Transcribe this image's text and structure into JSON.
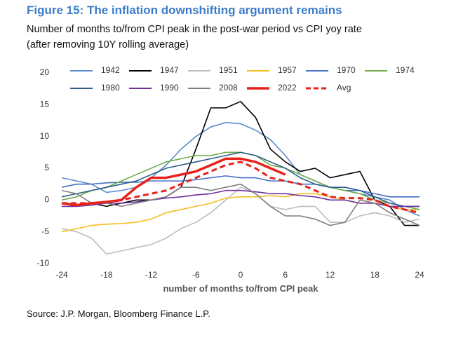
{
  "chart_data": {
    "type": "line",
    "title": "Figure 15: The inflation downshifting argument remains",
    "subtitle": [
      "Number of months to/from CPI peak in the post-war period vs CPI yoy rate",
      "(after removing 10Y rolling average)"
    ],
    "x_label": "number of months to/from CPI peak",
    "source": "Source: J.P. Morgan, Bloomberg Finance L.P.",
    "x": [
      -24,
      -22,
      -20,
      -18,
      -16,
      -14,
      -12,
      -10,
      -8,
      -6,
      -4,
      -2,
      0,
      2,
      4,
      6,
      8,
      10,
      12,
      14,
      16,
      18,
      20,
      22,
      24
    ],
    "xlim": [
      -24,
      24
    ],
    "xticks": [
      -24,
      -18,
      -12,
      -6,
      0,
      6,
      12,
      18,
      24
    ],
    "ylim": [
      -10,
      20
    ],
    "yticks": [
      -10,
      -5,
      0,
      5,
      10,
      15,
      20
    ],
    "grid": false,
    "legend": "top",
    "series": [
      {
        "name": "1942",
        "color": "#5b8cc9",
        "values": [
          3.5,
          3,
          2.5,
          1.2,
          1.5,
          2,
          3.5,
          5.5,
          8,
          10,
          11.5,
          12.2,
          12,
          11,
          9.5,
          7,
          4,
          3,
          2,
          1.5,
          1,
          0.5,
          0,
          -1.5,
          -2.5
        ]
      },
      {
        "name": "1947",
        "color": "#000000",
        "values": [
          -0.5,
          -1,
          -0.5,
          -1,
          -0.5,
          0,
          0,
          0.5,
          2,
          8,
          14.5,
          14.5,
          15.5,
          13,
          8,
          6,
          4.5,
          5,
          3.5,
          4,
          4.5,
          0,
          -1,
          -4,
          -4
        ]
      },
      {
        "name": "1951",
        "color": "#bdbdbd",
        "values": [
          -4.5,
          -5,
          -6,
          -8.5,
          -8,
          -7.5,
          -7,
          -6,
          -4.5,
          -3.5,
          -2,
          0,
          2,
          1,
          -1,
          -1.5,
          -1,
          -1,
          -3.5,
          -3.5,
          -2.5,
          -2,
          -2.5,
          -3.5,
          -3
        ]
      },
      {
        "name": "1957",
        "color": "#f5bd1f",
        "values": [
          -5,
          -4.5,
          -4,
          -3.8,
          -3.7,
          -3.5,
          -3,
          -2,
          -1.5,
          -1,
          -0.5,
          0.3,
          0.5,
          0.5,
          0.7,
          0.5,
          1,
          1,
          0.5,
          0,
          -0.5,
          -0.5,
          -1,
          -1.5,
          -1.5
        ]
      },
      {
        "name": "1970",
        "color": "#4472c4",
        "values": [
          2,
          2.5,
          2.5,
          2.7,
          2.8,
          2.8,
          3,
          3,
          3,
          3.2,
          3.5,
          3.8,
          3.5,
          3.5,
          3,
          3,
          2.5,
          2.5,
          2,
          1.5,
          1.5,
          1,
          0.5,
          0.5,
          0.5
        ]
      },
      {
        "name": "1974",
        "color": "#70ad47",
        "values": [
          0,
          0.5,
          1.5,
          2,
          3,
          4,
          5,
          6,
          6.5,
          7,
          7,
          7.5,
          7.5,
          7,
          5.5,
          5,
          4,
          3,
          2,
          1.5,
          1,
          0,
          -0.5,
          -1,
          -1.5
        ]
      },
      {
        "name": "1980",
        "color": "#2e5e8a",
        "values": [
          0.5,
          1,
          1.5,
          2,
          2.5,
          3,
          4,
          5,
          5.5,
          6,
          6.5,
          7,
          7.5,
          7,
          6,
          5,
          3.5,
          2.5,
          2,
          2,
          1.5,
          0.5,
          -0.5,
          -1,
          -1
        ]
      },
      {
        "name": "1990",
        "color": "#7030a0",
        "values": [
          -1,
          -1,
          -0.8,
          -0.5,
          -0.5,
          -0.3,
          0,
          0.3,
          0.5,
          0.8,
          1,
          1.5,
          1.5,
          1.3,
          1,
          1,
          0.7,
          0.5,
          0,
          0,
          -0.5,
          -0.5,
          -1,
          -1,
          -1
        ]
      },
      {
        "name": "2008",
        "color": "#7f7f7f",
        "values": [
          1.5,
          1,
          -0.5,
          -0.5,
          -1,
          -0.5,
          0,
          0.5,
          2,
          2,
          1.5,
          2,
          2.5,
          1,
          -1,
          -2.5,
          -2.5,
          -3,
          -4,
          -3.5,
          0,
          -0.5,
          -2,
          -3,
          -4
        ]
      },
      {
        "name": "2022",
        "color": "#e8221b",
        "line_width": 3.5,
        "values": [
          -0.5,
          -0.8,
          -0.5,
          -0.3,
          0,
          2,
          3.5,
          3.5,
          4,
          4.5,
          5.5,
          6.5,
          6.5,
          6,
          5,
          4,
          null,
          null,
          null,
          null,
          null,
          null,
          null,
          null,
          null
        ]
      },
      {
        "name": "Avg",
        "color": "#e8221b",
        "line_width": 3,
        "dashed": true,
        "values": [
          -0.5,
          -0.5,
          -0.5,
          -0.3,
          0,
          0.5,
          1,
          1.5,
          2.5,
          3.5,
          4.5,
          5.5,
          6,
          5,
          3.5,
          3,
          2.5,
          1.5,
          0.5,
          0.3,
          0.3,
          0,
          -1,
          -1.5,
          -2
        ]
      }
    ]
  }
}
